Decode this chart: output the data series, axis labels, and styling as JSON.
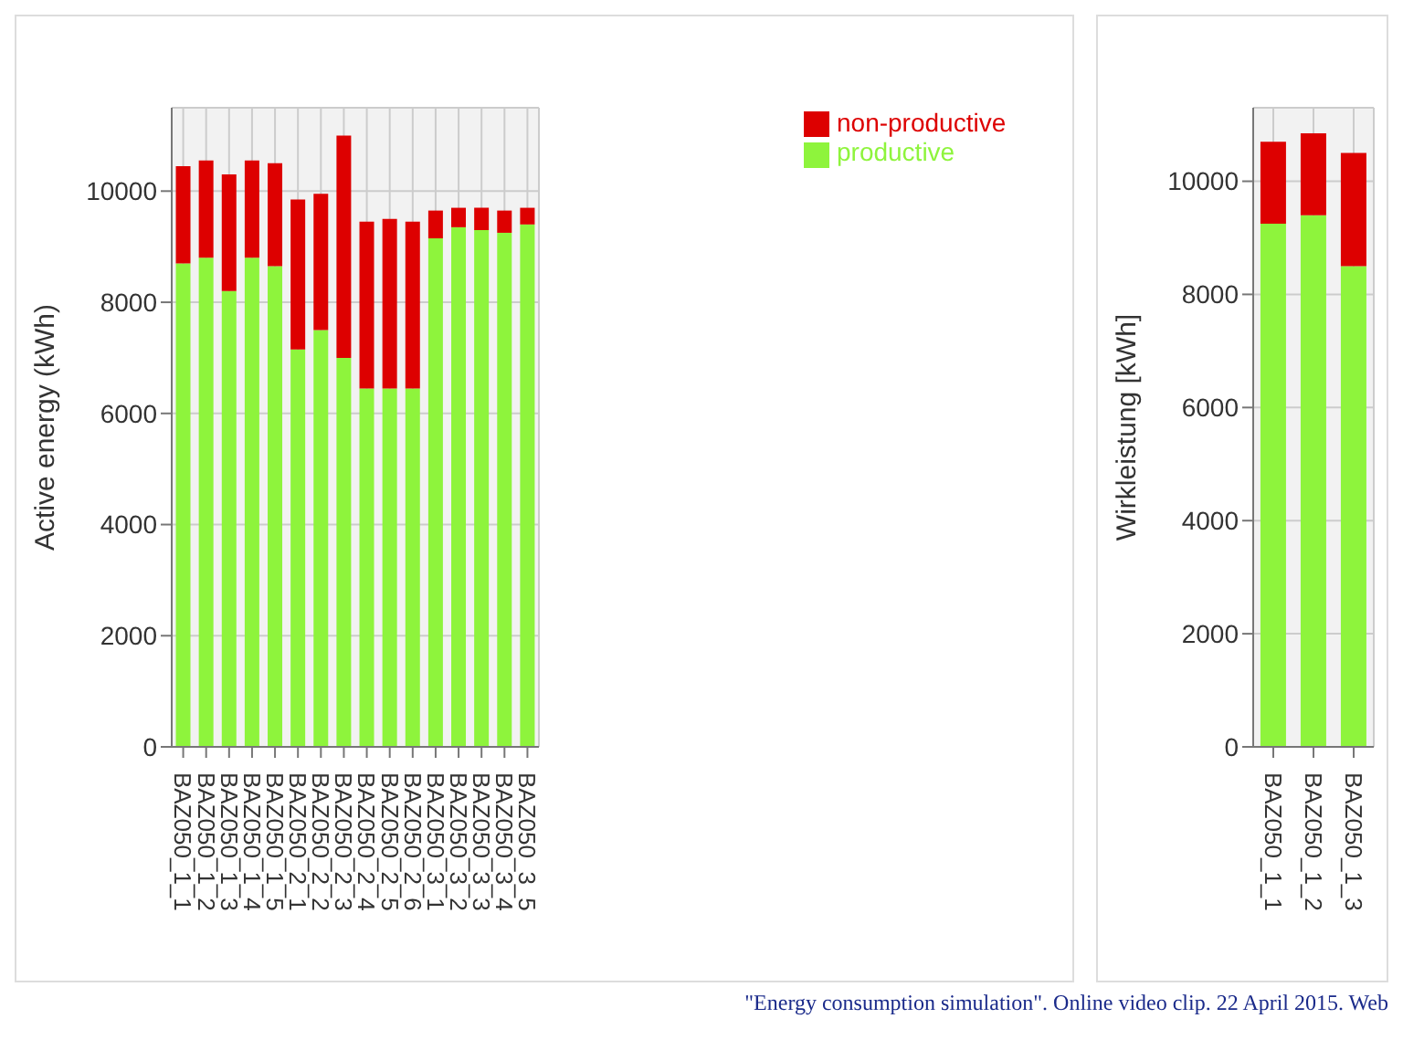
{
  "chart_data": [
    {
      "type": "bar",
      "stacked": true,
      "ylabel": "Active energy (kWh)",
      "categories": [
        "BAZ050_1_1",
        "BAZ050_1_2",
        "BAZ050_1_3",
        "BAZ050_1_4",
        "BAZ050_1_5",
        "BAZ050_2_1",
        "BAZ050_2_2",
        "BAZ050_2_3",
        "BAZ050_2_4",
        "BAZ050_2_5",
        "BAZ050_2_6",
        "BAZ050_3_1",
        "BAZ050_3_2",
        "BAZ050_3_3",
        "BAZ050_3_4",
        "BAZ050_3_5"
      ],
      "series": [
        {
          "name": "productive",
          "color": "#8ef43c",
          "values": [
            8700,
            8800,
            8200,
            8800,
            8650,
            7150,
            7500,
            7000,
            6450,
            6450,
            6450,
            9150,
            9350,
            9300,
            9250,
            9400
          ]
        },
        {
          "name": "non-productive",
          "color": "#dd0000",
          "values": [
            1750,
            1750,
            2100,
            1750,
            1850,
            2700,
            2450,
            4000,
            3000,
            3050,
            3000,
            500,
            350,
            400,
            400,
            300
          ]
        }
      ],
      "ylim": [
        0,
        11500
      ],
      "yticks": [
        0,
        2000,
        4000,
        6000,
        8000,
        10000
      ],
      "grid": true,
      "legend": "top right",
      "annotations": [
        "\"Energy consumption simulation\". Online video clip. 22 April 2015. Web"
      ]
    },
    {
      "type": "bar",
      "stacked": true,
      "ylabel": "Wirkleistung [kWh]",
      "categories": [
        "BAZ050_1_1",
        "BAZ050_1_2",
        "BAZ050_1_3"
      ],
      "series": [
        {
          "color": "#8ef43c",
          "values": [
            9250,
            9400,
            8500
          ]
        },
        {
          "color": "#dd0000",
          "values": [
            1450,
            1450,
            2000
          ]
        }
      ],
      "ylim": [
        0,
        11300
      ],
      "yticks": [
        0,
        2000,
        4000,
        6000,
        8000,
        10000
      ],
      "grid": true
    }
  ]
}
